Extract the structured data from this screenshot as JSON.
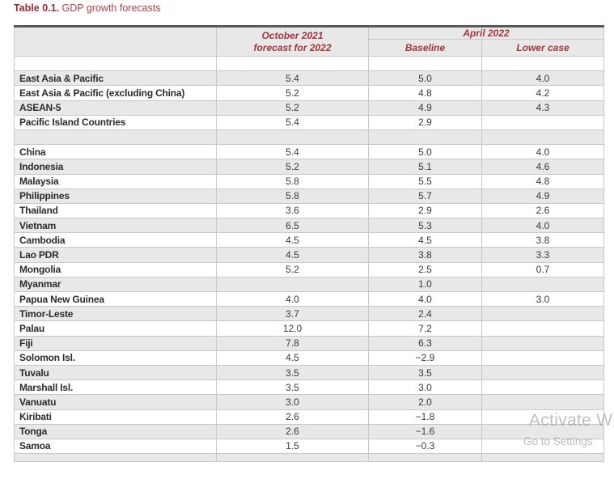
{
  "title": {
    "prefix": "Table 0.1.",
    "rest": "GDP growth forecasts"
  },
  "table": {
    "corner_header": "",
    "oct_header_line1": "October 2021",
    "oct_header_line2": "forecast for 2022",
    "group_header": "April 2022",
    "sub_headers": [
      "Baseline",
      "Lower case"
    ],
    "rows": [
      {
        "label": "",
        "oct2021": "",
        "baseline": "",
        "lower": "",
        "spacer": true
      },
      {
        "label": "East Asia & Pacific",
        "oct2021": "5.4",
        "baseline": "5.0",
        "lower": "4.0"
      },
      {
        "label": "East Asia & Pacific (excluding China)",
        "oct2021": "5.2",
        "baseline": "4.8",
        "lower": "4.2"
      },
      {
        "label": "ASEAN-5",
        "oct2021": "5.2",
        "baseline": "4.9",
        "lower": "4.3"
      },
      {
        "label": "Pacific Island Countries",
        "oct2021": "5.4",
        "baseline": "2.9",
        "lower": ""
      },
      {
        "label": "",
        "oct2021": "",
        "baseline": "",
        "lower": "",
        "spacer": true
      },
      {
        "label": "China",
        "oct2021": "5.4",
        "baseline": "5.0",
        "lower": "4.0"
      },
      {
        "label": "Indonesia",
        "oct2021": "5.2",
        "baseline": "5.1",
        "lower": "4.6"
      },
      {
        "label": "Malaysia",
        "oct2021": "5.8",
        "baseline": "5.5",
        "lower": "4.8"
      },
      {
        "label": "Philippines",
        "oct2021": "5.8",
        "baseline": "5.7",
        "lower": "4.9"
      },
      {
        "label": "Thailand",
        "oct2021": "3.6",
        "baseline": "2.9",
        "lower": "2.6"
      },
      {
        "label": "Vietnam",
        "oct2021": "6.5",
        "baseline": "5.3",
        "lower": "4.0"
      },
      {
        "label": "Cambodia",
        "oct2021": "4.5",
        "baseline": "4.5",
        "lower": "3.8"
      },
      {
        "label": "Lao PDR",
        "oct2021": "4.5",
        "baseline": "3.8",
        "lower": "3.3"
      },
      {
        "label": "Mongolia",
        "oct2021": "5.2",
        "baseline": "2.5",
        "lower": "0.7"
      },
      {
        "label": "Myanmar",
        "oct2021": "",
        "baseline": "1.0",
        "lower": ""
      },
      {
        "label": "Papua New Guinea",
        "oct2021": "4.0",
        "baseline": "4.0",
        "lower": "3.0"
      },
      {
        "label": "Timor-Leste",
        "oct2021": "3.7",
        "baseline": "2.4",
        "lower": ""
      },
      {
        "label": "Palau",
        "oct2021": "12.0",
        "baseline": "7.2",
        "lower": ""
      },
      {
        "label": "Fiji",
        "oct2021": "7.8",
        "baseline": "6.3",
        "lower": ""
      },
      {
        "label": "Solomon Isl.",
        "oct2021": "4.5",
        "baseline": "−2.9",
        "lower": ""
      },
      {
        "label": "Tuvalu",
        "oct2021": "3.5",
        "baseline": "3.5",
        "lower": ""
      },
      {
        "label": "Marshall Isl.",
        "oct2021": "3.5",
        "baseline": "3.0",
        "lower": ""
      },
      {
        "label": "Vanuatu",
        "oct2021": "3.0",
        "baseline": "2.0",
        "lower": ""
      },
      {
        "label": "Kiribati",
        "oct2021": "2.6",
        "baseline": "−1.8",
        "lower": ""
      },
      {
        "label": "Tonga",
        "oct2021": "2.6",
        "baseline": "−1.6",
        "lower": ""
      },
      {
        "label": "Samoa",
        "oct2021": "1.5",
        "baseline": "−0.3",
        "lower": ""
      },
      {
        "label": "",
        "oct2021": "",
        "baseline": "",
        "lower": "",
        "spacer": true,
        "partial": true
      }
    ]
  },
  "watermark": {
    "line1": "Activate Wi",
    "line2": "Go to Settings"
  },
  "colors": {
    "title_prefix_red": "#9C2B33",
    "title_rest_red": "#AF4148",
    "header_text_red": "#A3353F",
    "row_shade_gray": "#E8E8E8",
    "grid_line_gray": "#C8C8C8",
    "table_top_border": "#58595B",
    "watermark_gray": "#8E8E8E"
  }
}
